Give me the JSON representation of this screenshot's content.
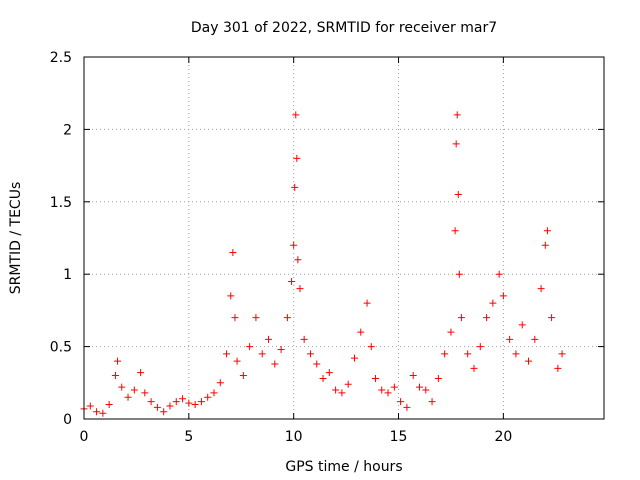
{
  "chart_data": {
    "type": "scatter",
    "title": "Day 301 of 2022, SRMTID for receiver mar7",
    "xlabel": "GPS time / hours",
    "ylabel": "SRMTID / TECUs",
    "xlim": [
      0,
      24.8
    ],
    "ylim": [
      0,
      2.5
    ],
    "xticks": [
      0,
      5,
      10,
      15,
      20
    ],
    "yticks": [
      0,
      0.5,
      1,
      1.5,
      2,
      2.5
    ],
    "xtick_labels": [
      "0",
      "5",
      "10",
      "15",
      "20"
    ],
    "ytick_labels": [
      "0",
      "0.5",
      "1",
      "1.5",
      "2",
      "2.5"
    ],
    "grid": true,
    "marker": "plus",
    "color": "#ff0000",
    "series": [
      {
        "name": "SRMTID",
        "x": [
          0.0,
          0.3,
          0.6,
          0.9,
          1.2,
          1.5,
          1.6,
          1.8,
          2.1,
          2.4,
          2.7,
          2.9,
          3.2,
          3.5,
          3.8,
          4.1,
          4.4,
          4.7,
          5.0,
          5.3,
          5.6,
          5.9,
          6.2,
          6.5,
          6.8,
          7.0,
          7.1,
          7.2,
          7.3,
          7.6,
          7.9,
          8.2,
          8.5,
          8.8,
          9.1,
          9.4,
          9.7,
          9.9,
          10.0,
          10.05,
          10.1,
          10.15,
          10.2,
          10.3,
          10.5,
          10.8,
          11.1,
          11.4,
          11.7,
          12.0,
          12.3,
          12.6,
          12.9,
          13.2,
          13.5,
          13.7,
          13.9,
          14.2,
          14.5,
          14.8,
          15.1,
          15.4,
          15.7,
          16.0,
          16.3,
          16.6,
          16.9,
          17.2,
          17.5,
          17.7,
          17.75,
          17.8,
          17.85,
          17.9,
          18.0,
          18.3,
          18.6,
          18.9,
          19.2,
          19.5,
          19.8,
          20.0,
          20.3,
          20.6,
          20.9,
          21.2,
          21.5,
          21.8,
          22.0,
          22.1,
          22.3,
          22.6,
          22.8
        ],
        "y": [
          0.07,
          0.09,
          0.05,
          0.04,
          0.1,
          0.3,
          0.4,
          0.22,
          0.15,
          0.2,
          0.32,
          0.18,
          0.12,
          0.08,
          0.05,
          0.09,
          0.12,
          0.14,
          0.11,
          0.1,
          0.12,
          0.15,
          0.18,
          0.25,
          0.45,
          0.85,
          1.15,
          0.7,
          0.4,
          0.3,
          0.5,
          0.7,
          0.45,
          0.55,
          0.38,
          0.48,
          0.7,
          0.95,
          1.2,
          1.6,
          2.1,
          1.8,
          1.1,
          0.9,
          0.55,
          0.45,
          0.38,
          0.28,
          0.32,
          0.2,
          0.18,
          0.24,
          0.42,
          0.6,
          0.8,
          0.5,
          0.28,
          0.2,
          0.18,
          0.22,
          0.12,
          0.08,
          0.3,
          0.22,
          0.2,
          0.12,
          0.28,
          0.45,
          0.6,
          1.3,
          1.9,
          2.1,
          1.55,
          1.0,
          0.7,
          0.45,
          0.35,
          0.5,
          0.7,
          0.8,
          1.0,
          0.85,
          0.55,
          0.45,
          0.65,
          0.4,
          0.55,
          0.9,
          1.2,
          1.3,
          0.7,
          0.35,
          0.45
        ]
      }
    ]
  }
}
